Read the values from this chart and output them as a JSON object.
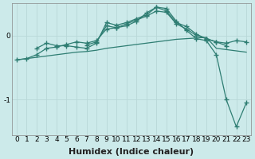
{
  "xlabel": "Humidex (Indice chaleur)",
  "background_color": "#cceaea",
  "grid_color": "#b8d8d8",
  "line_color": "#2e7d72",
  "x_ticks": [
    0,
    1,
    2,
    3,
    4,
    5,
    6,
    7,
    8,
    9,
    10,
    11,
    12,
    13,
    14,
    15,
    16,
    17,
    18,
    19,
    20,
    21,
    22,
    23
  ],
  "ylim": [
    -1.55,
    0.5
  ],
  "y_ticks": [
    0,
    -1
  ],
  "lines": [
    {
      "x": [
        0,
        1,
        2,
        3,
        4,
        5,
        6,
        7,
        8,
        9,
        10,
        11,
        12,
        13,
        14,
        15,
        16,
        17,
        18,
        19,
        20,
        21,
        22,
        23
      ],
      "y": [
        -0.38,
        -0.36,
        -0.34,
        -0.32,
        -0.3,
        -0.28,
        -0.26,
        -0.25,
        -0.23,
        -0.2,
        -0.18,
        -0.16,
        -0.14,
        -0.12,
        -0.1,
        -0.08,
        -0.06,
        -0.05,
        -0.04,
        -0.03,
        -0.2,
        -0.22,
        -0.24,
        -0.26
      ],
      "marker": false,
      "linestyle": "-"
    },
    {
      "x": [
        0,
        1,
        2,
        3,
        4,
        5,
        6,
        7,
        8,
        9,
        10,
        11,
        12,
        13,
        14,
        15,
        16,
        17,
        18,
        19,
        20,
        21,
        22,
        23
      ],
      "y": [
        -0.38,
        -0.36,
        -0.3,
        -0.2,
        -0.18,
        -0.14,
        -0.1,
        -0.12,
        -0.08,
        0.1,
        0.12,
        0.15,
        0.22,
        0.35,
        0.44,
        0.42,
        0.22,
        0.08,
        -0.05,
        -0.08,
        -0.3,
        -1.0,
        -1.42,
        -1.05
      ],
      "marker": true,
      "linestyle": "-"
    },
    {
      "x": [
        2,
        3,
        4,
        5,
        6,
        7,
        8,
        9,
        10,
        11,
        12,
        13,
        14,
        15,
        16,
        17,
        18,
        19,
        20,
        21,
        22,
        23
      ],
      "y": [
        -0.2,
        -0.12,
        -0.16,
        -0.16,
        -0.18,
        -0.2,
        -0.12,
        0.2,
        0.16,
        0.2,
        0.26,
        0.32,
        0.44,
        0.38,
        0.2,
        0.14,
        0.02,
        -0.05,
        -0.1,
        -0.12,
        -0.08,
        -0.1
      ],
      "marker": true,
      "linestyle": "-"
    },
    {
      "x": [
        7,
        8,
        9,
        10,
        11,
        12,
        13,
        14,
        15,
        16,
        17,
        18,
        19,
        20,
        21
      ],
      "y": [
        -0.15,
        -0.1,
        0.15,
        0.12,
        0.18,
        0.24,
        0.3,
        0.38,
        0.36,
        0.18,
        0.1,
        0.0,
        -0.05,
        -0.1,
        -0.16
      ],
      "marker": true,
      "linestyle": "-"
    }
  ],
  "label_fontsize": 8,
  "tick_fontsize": 6.5
}
